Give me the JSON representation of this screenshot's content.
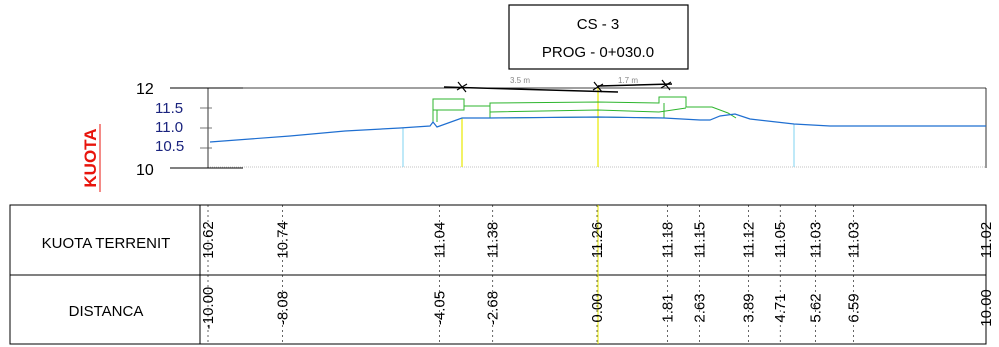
{
  "title_box": {
    "line1": "CS - 3",
    "line2": "PROG - 0+030.0"
  },
  "y_axis_title": "KUOTA",
  "y_axis_ticks": [
    "12",
    "11.5",
    "11.0",
    "10.5",
    "10"
  ],
  "dimensions": {
    "left": "3.5 m",
    "right": "1.7 m"
  },
  "table": {
    "row1_label": "KUOTA TERRENIT",
    "row2_label": "DISTANCA"
  },
  "colors": {
    "terrain": "#1f6fd1",
    "design": "#2db52d",
    "axis_title": "#e8140c",
    "tick_text": "#1a237e",
    "yellow_marker": "#e8e800",
    "cyan_marker": "#7fd3f0"
  },
  "chart_data": {
    "type": "line",
    "title": "CS - 3 / PROG - 0+030.0",
    "ylabel": "KUOTA",
    "ylim": [
      10,
      12
    ],
    "x": [
      -10.0,
      -8.08,
      -4.05,
      -2.68,
      0.0,
      1.81,
      2.63,
      3.89,
      4.71,
      5.62,
      6.59,
      10.0
    ],
    "series": [
      {
        "name": "KUOTA TERRENIT",
        "values": [
          10.62,
          10.74,
          11.04,
          11.38,
          11.26,
          11.18,
          11.15,
          11.12,
          11.05,
          11.03,
          11.03,
          11.02
        ]
      }
    ],
    "row_labels": [
      "KUOTA TERRENIT",
      "DISTANCA"
    ],
    "elevation_labels": [
      "10.62",
      "10.74",
      "11.04",
      "11.38",
      "11.26",
      "11.18",
      "11.15",
      "11.12",
      "11.05",
      "11.03",
      "11.03",
      "11.02"
    ],
    "distance_labels": [
      "-10.00",
      "-8.08",
      "-4.05",
      "-2.68",
      "0.00",
      "1.81",
      "2.63",
      "3.89",
      "4.71",
      "5.62",
      "6.59",
      "10.00"
    ]
  }
}
